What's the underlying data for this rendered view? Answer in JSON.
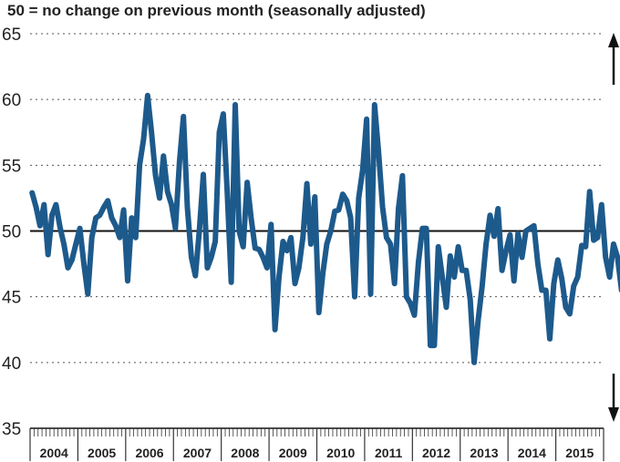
{
  "chart_data": {
    "type": "line",
    "subtitle": "50 = no change on previous month (seasonally adjusted)",
    "ylim": [
      35,
      65
    ],
    "yticks": [
      35,
      40,
      45,
      50,
      55,
      60,
      65
    ],
    "reference_line": 50,
    "grid": "dotted horizontal",
    "x_categories": [
      "2004",
      "2005",
      "2006",
      "2007",
      "2008",
      "2009",
      "2010",
      "2011",
      "2012",
      "2013",
      "2014",
      "2015"
    ],
    "series": [
      {
        "color": "#1d5a8c",
        "x_start": "2004-01",
        "frequency": "monthly",
        "values": [
          52.9,
          51.8,
          50.4,
          52.0,
          48.2,
          51.2,
          52.0,
          50.3,
          49.0,
          47.2,
          47.8,
          49.0,
          50.2,
          47.5,
          45.2,
          49.5,
          51.0,
          51.2,
          51.8,
          52.3,
          51.0,
          50.4,
          49.5,
          51.6,
          46.2,
          51.0,
          49.5,
          55.0,
          57.0,
          60.3,
          57.5,
          54.2,
          52.5,
          55.7,
          53.0,
          52.0,
          50.2,
          55.2,
          58.7,
          51.8,
          48.0,
          46.6,
          50.0,
          54.3,
          47.2,
          48.0,
          49.2,
          57.5,
          58.9,
          53.0,
          46.1,
          59.6,
          50.0,
          48.8,
          53.7,
          51.0,
          48.7,
          48.6,
          48.0,
          47.2,
          50.5,
          42.5,
          46.5,
          49.2,
          48.5,
          49.5,
          46.0,
          47.2,
          49.5,
          53.6,
          49.0,
          52.6,
          43.8,
          46.8,
          49.0,
          50.0,
          51.5,
          51.6,
          52.8,
          52.3,
          51.0,
          45.0,
          52.5,
          54.6,
          58.5,
          45.2,
          59.6,
          56.0,
          51.8,
          49.5,
          49.0,
          46.0,
          51.7,
          54.2,
          45.0,
          44.5,
          43.6,
          47.6,
          50.2,
          50.2,
          41.3,
          41.3,
          48.8,
          46.5,
          44.2,
          48.1,
          46.5,
          48.8,
          47.0,
          47.0,
          44.8,
          40.0,
          43.2,
          45.8,
          49.0,
          51.2,
          49.6,
          51.7,
          47.0,
          48.5,
          49.7,
          46.2,
          49.8,
          48.0,
          50.0,
          50.2,
          50.4,
          47.5,
          45.5,
          45.5,
          41.8,
          46.0,
          47.8,
          46.4,
          44.2,
          43.7,
          45.8,
          46.5,
          48.9,
          48.8,
          53.0,
          49.3,
          49.5,
          52.0,
          48.0,
          46.5,
          49.0,
          48.0,
          45.5
        ]
      }
    ]
  }
}
